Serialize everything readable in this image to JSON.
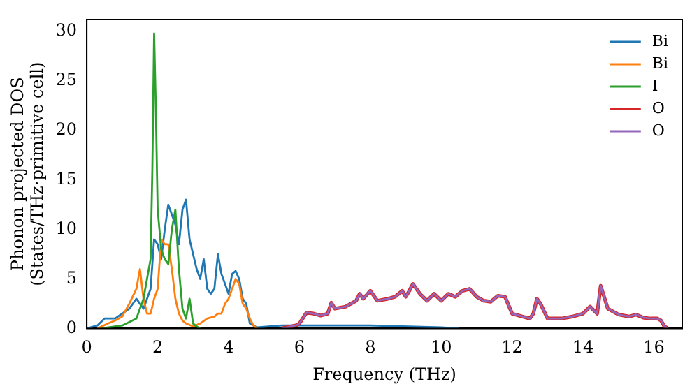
{
  "chart_data": {
    "type": "line",
    "xlabel": "Frequency (THz)",
    "ylabel": "Phonon projected DOS\n(States/THz·primitive cell)",
    "xlim": [
      0,
      16.8
    ],
    "ylim": [
      0,
      31.2
    ],
    "xticks": [
      0,
      2,
      4,
      6,
      8,
      10,
      12,
      14,
      16
    ],
    "yticks": [
      0,
      5,
      10,
      15,
      20,
      25,
      30
    ],
    "legend": "top right",
    "grid": false,
    "marker": "none",
    "line_style": "solid",
    "series": [
      {
        "name": "Bi",
        "color": "#1f77b4",
        "x": [
          0,
          0.3,
          0.5,
          0.8,
          1,
          1.2,
          1.4,
          1.6,
          1.8,
          1.9,
          2,
          2.1,
          2.2,
          2.3,
          2.4,
          2.5,
          2.6,
          2.7,
          2.8,
          2.9,
          3,
          3.1,
          3.2,
          3.3,
          3.4,
          3.5,
          3.6,
          3.7,
          3.8,
          3.9,
          4,
          4.1,
          4.2,
          4.3,
          4.4,
          4.5,
          4.6,
          4.8,
          5.5,
          8,
          10,
          10.5
        ],
        "values": [
          0,
          0.3,
          1,
          1,
          1.5,
          2,
          3,
          2,
          4,
          9,
          8.5,
          7,
          10,
          12.5,
          11.5,
          10.5,
          8.5,
          12,
          13,
          9,
          7.5,
          6,
          5,
          7,
          4,
          3.5,
          4,
          7.5,
          5.5,
          4.5,
          3.5,
          5.5,
          5.8,
          5,
          3,
          2.5,
          0.5,
          0.1,
          0.3,
          0.3,
          0.1,
          0
        ]
      },
      {
        "name": "Bi",
        "color": "#ff7f0e",
        "x": [
          0.3,
          0.6,
          0.8,
          1,
          1.2,
          1.4,
          1.5,
          1.6,
          1.7,
          1.8,
          1.9,
          2,
          2.1,
          2.2,
          2.3,
          2.4,
          2.5,
          2.6,
          2.7,
          2.8,
          3,
          3.2,
          3.4,
          3.6,
          3.7,
          3.8,
          3.9,
          4,
          4.1,
          4.2,
          4.3,
          4.4,
          4.5,
          4.6,
          4.7,
          4.8
        ],
        "values": [
          0,
          0.5,
          0.8,
          1.2,
          2.5,
          4,
          6,
          3,
          1.5,
          1.5,
          3,
          4,
          9,
          8.5,
          8.5,
          6,
          3,
          1.5,
          0.8,
          0.5,
          0.2,
          0.5,
          1,
          1.2,
          1.5,
          1.5,
          2.5,
          3,
          4,
          5,
          4.5,
          2.5,
          2,
          1,
          0.3,
          0
        ]
      },
      {
        "name": "I",
        "color": "#2ca02c",
        "x": [
          0.4,
          1,
          1.4,
          1.6,
          1.7,
          1.8,
          1.85,
          1.9,
          1.95,
          2,
          2.1,
          2.2,
          2.3,
          2.4,
          2.5,
          2.6,
          2.7,
          2.8,
          2.9,
          3,
          3.1,
          3.2
        ],
        "values": [
          0,
          0.3,
          1,
          3,
          5,
          7,
          16,
          29.8,
          22,
          12,
          8,
          7,
          6.5,
          10,
          12,
          6,
          2,
          1,
          3,
          0.5,
          0.2,
          0
        ]
      },
      {
        "name": "O",
        "color": "#d62728",
        "x": [
          5.5,
          5.9,
          6,
          6.2,
          6.4,
          6.6,
          6.8,
          6.9,
          7,
          7.3,
          7.6,
          7.7,
          7.8,
          8,
          8.2,
          8.5,
          8.7,
          8.9,
          9,
          9.1,
          9.2,
          9.4,
          9.6,
          9.8,
          10,
          10.2,
          10.4,
          10.6,
          10.8,
          11,
          11.2,
          11.4,
          11.6,
          11.8,
          12,
          12.3,
          12.5,
          12.6,
          12.7,
          12.8,
          13,
          13.4,
          13.7,
          14,
          14.2,
          14.4,
          14.5,
          14.7,
          15,
          15.3,
          15.5,
          15.7,
          15.9,
          16.1,
          16.2,
          16.3,
          16.4
        ],
        "values": [
          0,
          0.3,
          0.5,
          1.6,
          1.5,
          1.3,
          1.5,
          2.6,
          2,
          2.2,
          2.8,
          3.5,
          3,
          3.8,
          2.8,
          3,
          3.2,
          3.8,
          3.2,
          3.8,
          4.5,
          3.5,
          2.8,
          3.5,
          2.8,
          3.5,
          3.2,
          3.8,
          4,
          3.2,
          2.8,
          2.7,
          3.3,
          3.2,
          1.5,
          1.2,
          1,
          1.5,
          3,
          2.5,
          1,
          1,
          1.2,
          1.5,
          2.2,
          1.5,
          4.3,
          2,
          1.4,
          1.2,
          1.4,
          1.1,
          1,
          1,
          0.8,
          0.2,
          0
        ]
      },
      {
        "name": "O",
        "color": "#9467bd",
        "x": [
          5.5,
          5.9,
          6,
          6.2,
          6.4,
          6.6,
          6.8,
          6.9,
          7,
          7.3,
          7.6,
          7.7,
          7.8,
          8,
          8.2,
          8.5,
          8.7,
          8.9,
          9,
          9.1,
          9.2,
          9.4,
          9.6,
          9.8,
          10,
          10.2,
          10.4,
          10.6,
          10.8,
          11,
          11.2,
          11.4,
          11.6,
          11.8,
          12,
          12.3,
          12.5,
          12.6,
          12.7,
          12.8,
          13,
          13.4,
          13.7,
          14,
          14.2,
          14.4,
          14.5,
          14.7,
          15,
          15.3,
          15.5,
          15.7,
          15.9,
          16.1,
          16.2,
          16.3,
          16.4
        ],
        "values": [
          0,
          0.3,
          0.5,
          1.6,
          1.5,
          1.3,
          1.5,
          2.6,
          2,
          2.2,
          2.8,
          3.5,
          3,
          3.8,
          2.8,
          3,
          3.2,
          3.8,
          3.2,
          3.8,
          4.5,
          3.5,
          2.8,
          3.5,
          2.8,
          3.5,
          3.2,
          3.8,
          4,
          3.2,
          2.8,
          2.7,
          3.3,
          3.2,
          1.5,
          1.2,
          1,
          1.5,
          3,
          2.5,
          1,
          1,
          1.2,
          1.5,
          2.2,
          1.5,
          4.3,
          2,
          1.4,
          1.2,
          1.4,
          1.1,
          1,
          1,
          0.8,
          0.2,
          0
        ]
      }
    ]
  }
}
